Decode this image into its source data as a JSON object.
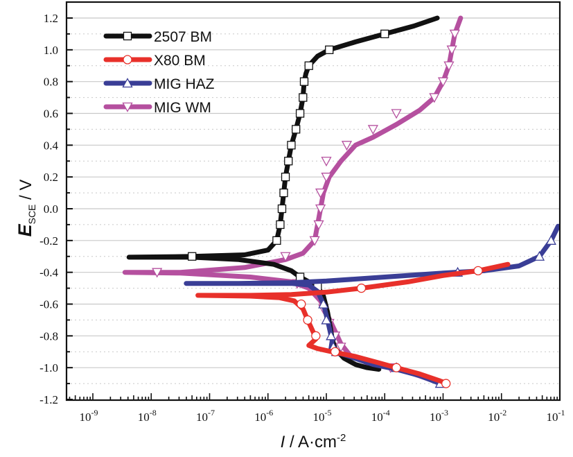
{
  "chart_data": {
    "type": "line",
    "title": "",
    "xlabel": "I / A·cm-2",
    "xlabel_parts": {
      "italic": "I",
      "rest": " / A·cm",
      "sup": "-2"
    },
    "ylabel": "E_SCE / V",
    "ylabel_parts": {
      "italic": "E",
      "sub": "SCE",
      "rest": " / V"
    },
    "x_scale": "log",
    "xlim_log10": [
      -9.45,
      -1
    ],
    "ylim": [
      -1.2,
      1.3
    ],
    "x_ticks": [
      {
        "exp": -9,
        "label_base": "10",
        "label_exp": "-9"
      },
      {
        "exp": -8,
        "label_base": "10",
        "label_exp": "-8"
      },
      {
        "exp": -7,
        "label_base": "10",
        "label_exp": "-7"
      },
      {
        "exp": -6,
        "label_base": "10",
        "label_exp": "-6"
      },
      {
        "exp": -5,
        "label_base": "10",
        "label_exp": "-5"
      },
      {
        "exp": -4,
        "label_base": "10",
        "label_exp": "-4"
      },
      {
        "exp": -3,
        "label_base": "10",
        "label_exp": "-3"
      },
      {
        "exp": -2,
        "label_base": "10",
        "label_exp": "-2"
      },
      {
        "exp": -1,
        "label_base": "10",
        "label_exp": "-1"
      }
    ],
    "y_ticks": [
      {
        "value": 1.2,
        "label": "1.2"
      },
      {
        "value": 1.0,
        "label": "1.0"
      },
      {
        "value": 0.8,
        "label": "0.8"
      },
      {
        "value": 0.6,
        "label": "0.6"
      },
      {
        "value": 0.4,
        "label": "0.4"
      },
      {
        "value": 0.2,
        "label": "0.2"
      },
      {
        "value": 0.0,
        "label": "0.0"
      },
      {
        "value": -0.2,
        "label": "-0.2"
      },
      {
        "value": -0.4,
        "label": "-0.4"
      },
      {
        "value": -0.6,
        "label": "-0.6"
      },
      {
        "value": -0.8,
        "label": "-0.8"
      },
      {
        "value": -1.0,
        "label": "-1.0"
      },
      {
        "value": -1.2,
        "label": "-1.2"
      }
    ],
    "grid": {
      "major_y": true,
      "minor_y_dotted": true
    },
    "legend_position": "top-left",
    "series": [
      {
        "name": "2507 BM",
        "color": "#111111",
        "marker": "square",
        "points_log10I_E": [
          [
            -3.1,
            1.2
          ],
          [
            -3.5,
            1.15
          ],
          [
            -4.0,
            1.1
          ],
          [
            -4.5,
            1.05
          ],
          [
            -4.95,
            1.0
          ],
          [
            -5.15,
            0.96
          ],
          [
            -5.3,
            0.9
          ],
          [
            -5.35,
            0.85
          ],
          [
            -5.38,
            0.8
          ],
          [
            -5.4,
            0.7
          ],
          [
            -5.45,
            0.6
          ],
          [
            -5.52,
            0.5
          ],
          [
            -5.6,
            0.4
          ],
          [
            -5.65,
            0.3
          ],
          [
            -5.7,
            0.2
          ],
          [
            -5.73,
            0.1
          ],
          [
            -5.76,
            0.0
          ],
          [
            -5.79,
            -0.1
          ],
          [
            -5.85,
            -0.2
          ],
          [
            -6.0,
            -0.26
          ],
          [
            -6.4,
            -0.29
          ],
          [
            -7.3,
            -0.3
          ],
          [
            -8.38,
            -0.305
          ],
          [
            -7.3,
            -0.305
          ],
          [
            -6.5,
            -0.32
          ],
          [
            -5.9,
            -0.35
          ],
          [
            -5.6,
            -0.39
          ],
          [
            -5.45,
            -0.43
          ],
          [
            -5.3,
            -0.46
          ],
          [
            -5.15,
            -0.49
          ],
          [
            -5.05,
            -0.55
          ],
          [
            -4.98,
            -0.65
          ],
          [
            -4.93,
            -0.75
          ],
          [
            -4.9,
            -0.82
          ],
          [
            -4.85,
            -0.88
          ],
          [
            -4.7,
            -0.94
          ],
          [
            -4.5,
            -0.98
          ],
          [
            -4.3,
            -1.0
          ],
          [
            -4.1,
            -1.01
          ]
        ],
        "marker_points_log10I_E": [
          [
            -4.0,
            1.1
          ],
          [
            -4.95,
            1.0
          ],
          [
            -5.3,
            0.9
          ],
          [
            -5.38,
            0.8
          ],
          [
            -5.4,
            0.7
          ],
          [
            -5.45,
            0.6
          ],
          [
            -5.52,
            0.5
          ],
          [
            -5.6,
            0.4
          ],
          [
            -5.65,
            0.3
          ],
          [
            -5.7,
            0.2
          ],
          [
            -5.73,
            0.1
          ],
          [
            -5.76,
            0.0
          ],
          [
            -5.79,
            -0.1
          ],
          [
            -5.85,
            -0.2
          ],
          [
            -7.3,
            -0.3
          ],
          [
            -5.45,
            -0.43
          ],
          [
            -5.15,
            -0.49
          ]
        ]
      },
      {
        "name": "X80 BM",
        "color": "#e8302a",
        "marker": "circle",
        "points_log10I_E": [
          [
            -1.89,
            -0.35
          ],
          [
            -2.4,
            -0.39
          ],
          [
            -3.0,
            -0.42
          ],
          [
            -3.6,
            -0.46
          ],
          [
            -4.4,
            -0.5
          ],
          [
            -5.0,
            -0.525
          ],
          [
            -5.6,
            -0.54
          ],
          [
            -6.3,
            -0.545
          ],
          [
            -7.2,
            -0.545
          ],
          [
            -6.3,
            -0.55
          ],
          [
            -5.8,
            -0.56
          ],
          [
            -5.55,
            -0.58
          ],
          [
            -5.4,
            -0.63
          ],
          [
            -5.32,
            -0.7
          ],
          [
            -5.22,
            -0.78
          ],
          [
            -5.18,
            -0.82
          ],
          [
            -5.3,
            -0.86
          ],
          [
            -5.15,
            -0.88
          ],
          [
            -4.9,
            -0.9
          ],
          [
            -4.5,
            -0.93
          ],
          [
            -4.1,
            -0.97
          ],
          [
            -3.8,
            -1.0
          ],
          [
            -3.4,
            -1.04
          ],
          [
            -3.0,
            -1.09
          ],
          [
            -2.95,
            -1.1
          ]
        ],
        "marker_points_log10I_E": [
          [
            -2.4,
            -0.39
          ],
          [
            -4.4,
            -0.5
          ],
          [
            -5.43,
            -0.6
          ],
          [
            -5.32,
            -0.7
          ],
          [
            -5.18,
            -0.8
          ],
          [
            -4.85,
            -0.9
          ],
          [
            -3.8,
            -1.0
          ],
          [
            -2.95,
            -1.1
          ]
        ]
      },
      {
        "name": "MIG HAZ",
        "color": "#3a3e96",
        "marker": "triangle-up",
        "points_log10I_E": [
          [
            -1.03,
            -0.11
          ],
          [
            -1.15,
            -0.2
          ],
          [
            -1.35,
            -0.3
          ],
          [
            -1.7,
            -0.36
          ],
          [
            -2.3,
            -0.39
          ],
          [
            -3.0,
            -0.405
          ],
          [
            -4.0,
            -0.43
          ],
          [
            -5.0,
            -0.455
          ],
          [
            -5.6,
            -0.465
          ],
          [
            -6.5,
            -0.47
          ],
          [
            -7.4,
            -0.47
          ],
          [
            -6.3,
            -0.47
          ],
          [
            -5.6,
            -0.47
          ],
          [
            -5.3,
            -0.48
          ],
          [
            -5.15,
            -0.52
          ],
          [
            -5.05,
            -0.6
          ],
          [
            -4.98,
            -0.7
          ],
          [
            -4.93,
            -0.78
          ],
          [
            -4.9,
            -0.83
          ],
          [
            -4.92,
            -0.88
          ],
          [
            -4.85,
            -0.9
          ],
          [
            -4.6,
            -0.93
          ],
          [
            -4.2,
            -0.98
          ],
          [
            -3.8,
            -1.01
          ],
          [
            -3.4,
            -1.05
          ],
          [
            -3.05,
            -1.1
          ]
        ],
        "marker_points_log10I_E": [
          [
            -1.15,
            -0.2
          ],
          [
            -1.35,
            -0.3
          ],
          [
            -2.75,
            -0.4
          ],
          [
            -5.05,
            -0.6
          ],
          [
            -5.0,
            -0.7
          ],
          [
            -4.92,
            -0.8
          ],
          [
            -4.88,
            -0.87
          ],
          [
            -4.83,
            -0.9
          ],
          [
            -3.8,
            -1.0
          ],
          [
            -3.05,
            -1.1
          ]
        ]
      },
      {
        "name": "MIG WM",
        "color": "#b5509f",
        "marker": "triangle-down",
        "points_log10I_E": [
          [
            -2.7,
            1.2
          ],
          [
            -2.8,
            1.1
          ],
          [
            -2.85,
            1.0
          ],
          [
            -2.9,
            0.9
          ],
          [
            -3.0,
            0.8
          ],
          [
            -3.15,
            0.7
          ],
          [
            -3.4,
            0.62
          ],
          [
            -3.8,
            0.53
          ],
          [
            -4.2,
            0.45
          ],
          [
            -4.5,
            0.4
          ],
          [
            -4.75,
            0.3
          ],
          [
            -4.95,
            0.2
          ],
          [
            -5.05,
            0.1
          ],
          [
            -5.1,
            0.0
          ],
          [
            -5.15,
            -0.1
          ],
          [
            -5.2,
            -0.2
          ],
          [
            -5.4,
            -0.28
          ],
          [
            -5.7,
            -0.32
          ],
          [
            -6.4,
            -0.37
          ],
          [
            -7.5,
            -0.4
          ],
          [
            -8.45,
            -0.4
          ],
          [
            -7.5,
            -0.405
          ],
          [
            -6.3,
            -0.43
          ],
          [
            -5.6,
            -0.46
          ],
          [
            -5.3,
            -0.5
          ],
          [
            -5.1,
            -0.58
          ],
          [
            -4.98,
            -0.67
          ],
          [
            -4.85,
            -0.77
          ],
          [
            -4.75,
            -0.85
          ],
          [
            -4.6,
            -0.92
          ],
          [
            -4.3,
            -0.97
          ],
          [
            -3.9,
            -1.0
          ],
          [
            -3.5,
            -1.04
          ],
          [
            -3.1,
            -1.09
          ]
        ],
        "marker_points_log10I_E": [
          [
            -2.8,
            1.1
          ],
          [
            -2.85,
            1.0
          ],
          [
            -2.9,
            0.9
          ],
          [
            -3.0,
            0.8
          ],
          [
            -3.15,
            0.7
          ],
          [
            -3.8,
            0.6
          ],
          [
            -4.2,
            0.5
          ],
          [
            -4.65,
            0.4
          ],
          [
            -5.0,
            0.3
          ],
          [
            -5.0,
            0.2
          ],
          [
            -5.1,
            0.1
          ],
          [
            -5.1,
            0.0
          ],
          [
            -5.13,
            -0.1
          ],
          [
            -5.2,
            -0.2
          ],
          [
            -5.7,
            -0.3
          ],
          [
            -7.9,
            -0.4
          ],
          [
            -5.5,
            -0.47
          ],
          [
            -5.05,
            -0.63
          ],
          [
            -4.95,
            -0.72
          ],
          [
            -4.85,
            -0.8
          ],
          [
            -4.75,
            -0.87
          ],
          [
            -3.9,
            -1.0
          ]
        ]
      }
    ]
  }
}
